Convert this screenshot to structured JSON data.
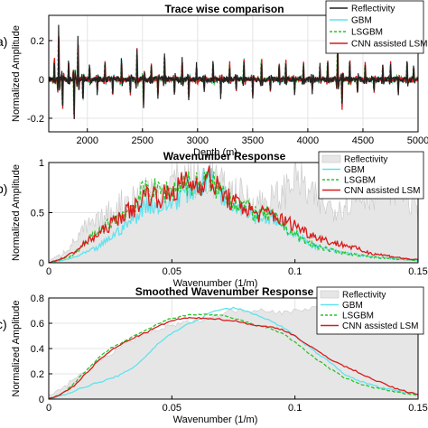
{
  "chart_data": [
    {
      "type": "line",
      "panel_label": "a)",
      "title": "Trace wise comparison",
      "xlabel": "Depth (m)",
      "ylabel": "Normalized Amplitude",
      "xlim": [
        1650,
        5000
      ],
      "ylim": [
        -0.27,
        0.33
      ],
      "xticks": [
        2000,
        2500,
        3000,
        3500,
        4000,
        4500,
        5000
      ],
      "yticks": [
        -0.2,
        0,
        0.2
      ],
      "ytick_labels": [
        "-0.2",
        "0",
        "0.2"
      ],
      "grid": true,
      "legend": "top-right",
      "series": [
        {
          "name": "Reflectivity",
          "color": "#222222",
          "style": "solid"
        },
        {
          "name": "GBM",
          "color": "#5fe3ee",
          "style": "solid"
        },
        {
          "name": "LSGBM",
          "color": "#2bc42b",
          "style": "dashed"
        },
        {
          "name": "CNN assisted LSM",
          "color": "#d81b1b",
          "style": "solid"
        }
      ],
      "events": [
        {
          "x": 1700,
          "a": 0.12
        },
        {
          "x": 1740,
          "a": 0.28
        },
        {
          "x": 1775,
          "a": -0.16
        },
        {
          "x": 1830,
          "a": 0.1
        },
        {
          "x": 1880,
          "a": -0.22
        },
        {
          "x": 1915,
          "a": 0.23
        },
        {
          "x": 1960,
          "a": -0.12
        },
        {
          "x": 2020,
          "a": 0.08
        },
        {
          "x": 2090,
          "a": -0.07
        },
        {
          "x": 2160,
          "a": 0.1
        },
        {
          "x": 2230,
          "a": -0.09
        },
        {
          "x": 2310,
          "a": 0.11
        },
        {
          "x": 2390,
          "a": -0.08
        },
        {
          "x": 2450,
          "a": 0.17
        },
        {
          "x": 2510,
          "a": -0.14
        },
        {
          "x": 2580,
          "a": 0.09
        },
        {
          "x": 2640,
          "a": -0.1
        },
        {
          "x": 2700,
          "a": 0.14
        },
        {
          "x": 2790,
          "a": -0.09
        },
        {
          "x": 2860,
          "a": 0.11
        },
        {
          "x": 2920,
          "a": -0.12
        },
        {
          "x": 2990,
          "a": 0.08
        },
        {
          "x": 3060,
          "a": -0.06
        },
        {
          "x": 3140,
          "a": 0.1
        },
        {
          "x": 3210,
          "a": -0.09
        },
        {
          "x": 3290,
          "a": 0.09
        },
        {
          "x": 3350,
          "a": -0.07
        },
        {
          "x": 3420,
          "a": 0.12
        },
        {
          "x": 3500,
          "a": -0.1
        },
        {
          "x": 3580,
          "a": 0.11
        },
        {
          "x": 3660,
          "a": -0.06
        },
        {
          "x": 3740,
          "a": 0.08
        },
        {
          "x": 3800,
          "a": 0.1
        },
        {
          "x": 3880,
          "a": -0.08
        },
        {
          "x": 3960,
          "a": 0.09
        },
        {
          "x": 4040,
          "a": -0.07
        },
        {
          "x": 4110,
          "a": 0.08
        },
        {
          "x": 4180,
          "a": 0.11
        },
        {
          "x": 4270,
          "a": 0.22
        },
        {
          "x": 4310,
          "a": -0.16
        },
        {
          "x": 4380,
          "a": 0.1
        },
        {
          "x": 4450,
          "a": -0.08
        },
        {
          "x": 4520,
          "a": 0.09
        },
        {
          "x": 4600,
          "a": -0.07
        },
        {
          "x": 4680,
          "a": 0.08
        },
        {
          "x": 4750,
          "a": 0.09
        },
        {
          "x": 4820,
          "a": -0.08
        },
        {
          "x": 4900,
          "a": 0.1
        },
        {
          "x": 4960,
          "a": 0.07
        }
      ]
    },
    {
      "type": "line",
      "panel_label": "b)",
      "title": "Wavenumber Response",
      "xlabel": "Wavenumber (1/m)",
      "ylabel": "Normalized Amplitude",
      "xlim": [
        0,
        0.15
      ],
      "ylim": [
        0,
        1
      ],
      "xticks": [
        0,
        0.05,
        0.1,
        0.15
      ],
      "xtick_labels": [
        "0",
        "0.05",
        "0.1",
        "0.15"
      ],
      "yticks": [
        0,
        0.5,
        1
      ],
      "ytick_labels": [
        "0",
        "0.5",
        "1"
      ],
      "grid": true,
      "legend": "top-right",
      "series": [
        {
          "name": "Reflectivity",
          "color": "#d9d9d9",
          "style": "filled"
        },
        {
          "name": "GBM",
          "color": "#5fe3ee",
          "style": "solid"
        },
        {
          "name": "LSGBM",
          "color": "#2bc42b",
          "style": "dashed"
        },
        {
          "name": "CNN assisted LSM",
          "color": "#d81b1b",
          "style": "solid"
        }
      ],
      "x": [
        0,
        0.005,
        0.01,
        0.015,
        0.02,
        0.025,
        0.03,
        0.035,
        0.04,
        0.045,
        0.05,
        0.055,
        0.06,
        0.065,
        0.07,
        0.075,
        0.08,
        0.085,
        0.09,
        0.095,
        0.1,
        0.105,
        0.11,
        0.115,
        0.12,
        0.125,
        0.13,
        0.135,
        0.14,
        0.145,
        0.15
      ],
      "envelopes": {
        "Reflectivity": [
          0.02,
          0.08,
          0.2,
          0.35,
          0.4,
          0.5,
          0.6,
          0.65,
          0.75,
          0.72,
          0.8,
          0.85,
          0.82,
          0.9,
          0.75,
          0.7,
          0.65,
          0.6,
          0.62,
          0.68,
          0.9,
          0.7,
          0.6,
          0.55,
          0.6,
          0.65,
          0.7,
          0.75,
          0.8,
          0.7,
          0.5
        ],
        "GBM": [
          0,
          0.02,
          0.05,
          0.1,
          0.15,
          0.25,
          0.35,
          0.45,
          0.6,
          0.55,
          0.6,
          0.7,
          0.75,
          0.85,
          0.7,
          0.6,
          0.55,
          0.45,
          0.45,
          0.35,
          0.3,
          0.2,
          0.15,
          0.12,
          0.1,
          0.08,
          0.06,
          0.05,
          0.04,
          0.03,
          0.02
        ],
        "LSGBM": [
          0,
          0.03,
          0.08,
          0.2,
          0.3,
          0.4,
          0.5,
          0.6,
          0.75,
          0.7,
          0.72,
          0.8,
          0.78,
          0.82,
          0.72,
          0.62,
          0.55,
          0.48,
          0.48,
          0.38,
          0.28,
          0.2,
          0.16,
          0.12,
          0.1,
          0.08,
          0.06,
          0.05,
          0.04,
          0.03,
          0.02
        ],
        "CNN assisted LSM": [
          0,
          0.04,
          0.1,
          0.2,
          0.28,
          0.38,
          0.48,
          0.55,
          0.7,
          0.65,
          0.7,
          0.8,
          0.78,
          0.85,
          0.7,
          0.6,
          0.55,
          0.48,
          0.5,
          0.42,
          0.38,
          0.3,
          0.25,
          0.2,
          0.18,
          0.14,
          0.1,
          0.08,
          0.06,
          0.04,
          0.03
        ]
      }
    },
    {
      "type": "line",
      "panel_label": "c)",
      "title": "Smoothed Wavenumber Response",
      "xlabel": "Wavenumber (1/m)",
      "ylabel": "Normalized Amplitude",
      "xlim": [
        0,
        0.15
      ],
      "ylim": [
        0,
        0.8
      ],
      "xticks": [
        0,
        0.05,
        0.1,
        0.15
      ],
      "xtick_labels": [
        "0",
        "0.05",
        "0.1",
        "0.15"
      ],
      "yticks": [
        0,
        0.2,
        0.4,
        0.6,
        0.8
      ],
      "ytick_labels": [
        "0",
        "0.2",
        "0.4",
        "0.6",
        "0.8"
      ],
      "grid": true,
      "legend": "top-right",
      "series": [
        {
          "name": "Reflectivity",
          "color": "#d9d9d9",
          "style": "filled",
          "values": [
            0.02,
            0.08,
            0.15,
            0.22,
            0.3,
            0.36,
            0.42,
            0.48,
            0.52,
            0.55,
            0.58,
            0.6,
            0.62,
            0.65,
            0.67,
            0.7,
            0.7,
            0.71,
            0.7,
            0.68,
            0.7,
            0.72,
            0.73,
            0.72,
            0.7,
            0.68,
            0.67,
            0.66,
            0.65,
            0.63,
            0.6
          ]
        },
        {
          "name": "GBM",
          "color": "#5fe3ee",
          "style": "solid",
          "values": [
            0.0,
            0.03,
            0.06,
            0.1,
            0.13,
            0.16,
            0.2,
            0.26,
            0.35,
            0.45,
            0.52,
            0.58,
            0.62,
            0.68,
            0.71,
            0.72,
            0.7,
            0.66,
            0.62,
            0.57,
            0.5,
            0.42,
            0.35,
            0.28,
            0.2,
            0.15,
            0.12,
            0.09,
            0.07,
            0.05,
            0.04
          ]
        },
        {
          "name": "LSGBM",
          "color": "#2bc42b",
          "style": "dashed",
          "values": [
            0.0,
            0.04,
            0.12,
            0.22,
            0.32,
            0.4,
            0.45,
            0.5,
            0.55,
            0.6,
            0.64,
            0.66,
            0.67,
            0.67,
            0.66,
            0.64,
            0.61,
            0.58,
            0.56,
            0.52,
            0.45,
            0.37,
            0.3,
            0.23,
            0.17,
            0.13,
            0.1,
            0.08,
            0.06,
            0.04,
            0.03
          ]
        },
        {
          "name": "CNN assisted LSM",
          "color": "#d81b1b",
          "style": "solid",
          "values": [
            0.0,
            0.04,
            0.1,
            0.2,
            0.3,
            0.38,
            0.44,
            0.49,
            0.53,
            0.58,
            0.62,
            0.64,
            0.64,
            0.64,
            0.63,
            0.62,
            0.6,
            0.58,
            0.57,
            0.55,
            0.5,
            0.43,
            0.37,
            0.31,
            0.26,
            0.22,
            0.17,
            0.13,
            0.09,
            0.06,
            0.04
          ]
        }
      ],
      "x": [
        0,
        0.005,
        0.01,
        0.015,
        0.02,
        0.025,
        0.03,
        0.035,
        0.04,
        0.045,
        0.05,
        0.055,
        0.06,
        0.065,
        0.07,
        0.075,
        0.08,
        0.085,
        0.09,
        0.095,
        0.1,
        0.105,
        0.11,
        0.115,
        0.12,
        0.125,
        0.13,
        0.135,
        0.14,
        0.145,
        0.15
      ]
    }
  ]
}
